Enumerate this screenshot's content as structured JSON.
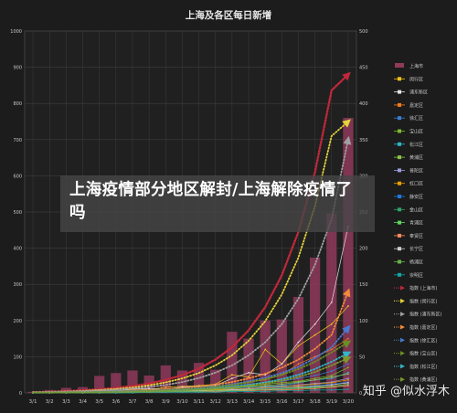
{
  "chart_data": {
    "type": "bar",
    "title": "上海及各区每日新增",
    "categories": [
      "3/1",
      "3/2",
      "3/3",
      "3/4",
      "3/5",
      "3/6",
      "3/7",
      "3/8",
      "3/9",
      "3/10",
      "3/11",
      "3/12",
      "3/13",
      "3/14",
      "3/15",
      "3/16",
      "3/17",
      "3/18",
      "3/19",
      "3/20"
    ],
    "ylim": [
      0,
      1000
    ],
    "y2lim": [
      0,
      500
    ],
    "y_ticks": [
      "0",
      "100",
      "200",
      "300",
      "400",
      "500",
      "600",
      "700",
      "800",
      "900",
      "1000"
    ],
    "y2_ticks": [
      "0",
      "50",
      "100",
      "150",
      "200",
      "250",
      "300",
      "350",
      "400",
      "450",
      "500"
    ],
    "grid": true,
    "legend_position": "right",
    "bar_series": {
      "name": "上海市",
      "color": "#8e3a5a",
      "values": [
        3,
        8,
        14,
        16,
        47,
        55,
        62,
        48,
        76,
        62,
        83,
        64,
        169,
        150,
        200,
        203,
        265,
        374,
        496,
        760
      ]
    },
    "line_series": [
      {
        "name": "闵行区",
        "color": "#f2c318",
        "values": [
          0,
          1,
          2,
          1,
          3,
          5,
          6,
          4,
          8,
          9,
          10,
          12,
          25,
          22,
          60,
          40,
          65,
          80,
          95,
          120
        ]
      },
      {
        "name": "浦东新区",
        "color": "#e0e0e0",
        "values": [
          0,
          1,
          1,
          2,
          4,
          3,
          5,
          6,
          5,
          8,
          9,
          10,
          20,
          28,
          25,
          40,
          70,
          95,
          125,
          230
        ]
      },
      {
        "name": "嘉定区",
        "color": "#f07b1e",
        "values": [
          0,
          0,
          1,
          1,
          2,
          2,
          4,
          3,
          6,
          6,
          5,
          8,
          12,
          15,
          18,
          25,
          40,
          50,
          60,
          75
        ]
      },
      {
        "name": "徐汇区",
        "color": "#3c7fd6",
        "values": [
          0,
          0,
          1,
          1,
          2,
          3,
          3,
          2,
          5,
          4,
          6,
          7,
          10,
          12,
          15,
          16,
          20,
          24,
          30,
          40
        ]
      },
      {
        "name": "宝山区",
        "color": "#7cbb2c",
        "values": [
          0,
          0,
          0,
          1,
          1,
          2,
          2,
          3,
          3,
          4,
          4,
          6,
          8,
          10,
          12,
          14,
          16,
          20,
          24,
          35
        ]
      },
      {
        "name": "松江区",
        "color": "#2fb5c5",
        "values": [
          0,
          0,
          0,
          0,
          1,
          1,
          2,
          2,
          3,
          3,
          4,
          5,
          6,
          8,
          9,
          10,
          14,
          18,
          20,
          28
        ]
      },
      {
        "name": "黄浦区",
        "color": "#8bc34a",
        "values": [
          0,
          0,
          1,
          1,
          1,
          2,
          2,
          3,
          3,
          2,
          4,
          5,
          7,
          9,
          10,
          12,
          15,
          18,
          22,
          26
        ]
      },
      {
        "name": "普陀区",
        "color": "#9b9bd8",
        "values": [
          0,
          0,
          0,
          1,
          1,
          1,
          2,
          2,
          2,
          3,
          3,
          4,
          5,
          6,
          8,
          9,
          11,
          13,
          15,
          20
        ]
      },
      {
        "name": "虹口区",
        "color": "#e6a100",
        "values": [
          0,
          0,
          0,
          0,
          1,
          1,
          1,
          2,
          2,
          2,
          3,
          4,
          5,
          6,
          7,
          8,
          10,
          12,
          14,
          18
        ]
      },
      {
        "name": "静安区",
        "color": "#1f7adf",
        "values": [
          0,
          0,
          0,
          0,
          0,
          1,
          1,
          1,
          2,
          2,
          2,
          3,
          4,
          5,
          6,
          7,
          8,
          10,
          12,
          15
        ]
      },
      {
        "name": "金山区",
        "color": "#2fa36b",
        "values": [
          0,
          0,
          0,
          0,
          0,
          0,
          1,
          1,
          1,
          1,
          2,
          2,
          3,
          3,
          4,
          5,
          6,
          7,
          8,
          10
        ]
      },
      {
        "name": "青浦区",
        "color": "#5cd65c",
        "values": [
          0,
          0,
          0,
          0,
          0,
          1,
          1,
          1,
          1,
          2,
          2,
          3,
          3,
          4,
          5,
          6,
          7,
          8,
          9,
          12
        ]
      },
      {
        "name": "奉贤区",
        "color": "#ff8c5a",
        "values": [
          0,
          0,
          0,
          0,
          0,
          0,
          1,
          1,
          1,
          2,
          2,
          2,
          3,
          3,
          4,
          4,
          5,
          6,
          8,
          10
        ]
      },
      {
        "name": "长宁区",
        "color": "#cfcfcf",
        "values": [
          0,
          0,
          0,
          1,
          1,
          1,
          1,
          2,
          2,
          2,
          3,
          3,
          4,
          5,
          5,
          6,
          8,
          9,
          11,
          14
        ]
      },
      {
        "name": "杨浦区",
        "color": "#6ab04c",
        "values": [
          0,
          0,
          0,
          0,
          1,
          1,
          1,
          1,
          2,
          2,
          2,
          3,
          3,
          4,
          5,
          6,
          7,
          8,
          9,
          12
        ]
      },
      {
        "name": "崇明区",
        "color": "#14a5a5",
        "values": [
          0,
          0,
          0,
          0,
          0,
          0,
          0,
          1,
          1,
          1,
          1,
          1,
          2,
          2,
          2,
          3,
          3,
          4,
          4,
          5
        ]
      }
    ],
    "trend_series": [
      {
        "name": "指数 (上海市)",
        "color": "#c0283a",
        "axis": "left",
        "values": [
          2,
          3,
          5,
          7,
          10,
          14,
          19,
          26,
          36,
          49,
          67,
          92,
          126,
          173,
          237,
          325,
          445,
          610,
          836,
          880
        ]
      },
      {
        "name": "指数 (闵行区)",
        "color": "#e6d23a",
        "axis": "right",
        "values": [
          1,
          1.4,
          2,
          2.8,
          4,
          5.5,
          7.5,
          10.5,
          14.5,
          20,
          27.5,
          38,
          52,
          72,
          99,
          136,
          187,
          258,
          355,
          375
        ]
      },
      {
        "name": "指数 (浦东新区)",
        "color": "#a0a0a0",
        "axis": "right",
        "values": [
          1,
          1.3,
          1.8,
          2.4,
          3.3,
          4.5,
          6,
          8.2,
          11,
          15,
          20.5,
          28,
          38,
          52,
          70,
          95,
          130,
          177,
          240,
          350
        ]
      },
      {
        "name": "指数 (嘉定区)",
        "color": "#f08a3c",
        "axis": "right",
        "values": [
          0.5,
          0.7,
          0.9,
          1.2,
          1.6,
          2.1,
          2.8,
          3.7,
          4.9,
          6.5,
          8.6,
          11.4,
          15,
          20,
          26.5,
          35,
          46,
          61,
          80,
          140
        ]
      },
      {
        "name": "指数 (徐汇区)",
        "color": "#4a7ad0",
        "axis": "right",
        "values": [
          0.5,
          0.6,
          0.8,
          1.1,
          1.4,
          1.8,
          2.4,
          3.1,
          4,
          5.3,
          7,
          9.2,
          12,
          16,
          21,
          27.5,
          36,
          48,
          63,
          90
        ]
      },
      {
        "name": "指数 (宝山区)",
        "color": "#6b8e23",
        "axis": "right",
        "values": [
          0.5,
          0.6,
          0.8,
          1,
          1.3,
          1.7,
          2.2,
          2.9,
          3.8,
          5,
          6.5,
          8.5,
          11,
          14.5,
          19,
          25,
          33,
          43,
          56,
          70
        ]
      },
      {
        "name": "指数 (松江区)",
        "color": "#35b5c9",
        "axis": "right",
        "values": [
          0.3,
          0.4,
          0.5,
          0.7,
          0.9,
          1.2,
          1.6,
          2.1,
          2.8,
          3.7,
          4.9,
          6.4,
          8.4,
          11,
          14.5,
          19,
          25,
          33,
          43,
          55
        ]
      },
      {
        "name": "指数 (黄浦区)",
        "color": "#7c9a2c",
        "axis": "right",
        "values": [
          0.3,
          0.4,
          0.5,
          0.6,
          0.8,
          1.1,
          1.4,
          1.9,
          2.5,
          3.3,
          4.3,
          5.7,
          7.5,
          9.8,
          13,
          17,
          22,
          29,
          38,
          48
        ]
      }
    ],
    "legend_labels": [
      "上海市",
      "闵行区",
      "浦东新区",
      "嘉定区",
      "徐汇区",
      "宝山区",
      "松江区",
      "黄浦区",
      "普陀区",
      "虹口区",
      "静安区",
      "金山区",
      "青浦区",
      "奉贤区",
      "长宁区",
      "杨浦区",
      "崇明区",
      "指数 (上海市)",
      "指数 (闵行区)",
      "指数 (浦东新区)",
      "指数 (嘉定区)",
      "指数 (徐汇区)",
      "指数 (宝山区)",
      "指数 (松江区)",
      "指数 (黄浦区)"
    ]
  },
  "overlay": {
    "headline": "上海疫情部分地区解封/上海解除疫情了吗",
    "watermark": "知乎 @似水浮木"
  },
  "colors": {
    "background": "#1c1c1c",
    "plot_background": "#202020",
    "grid": "#444444",
    "axis_text": "#c8c8c8"
  }
}
